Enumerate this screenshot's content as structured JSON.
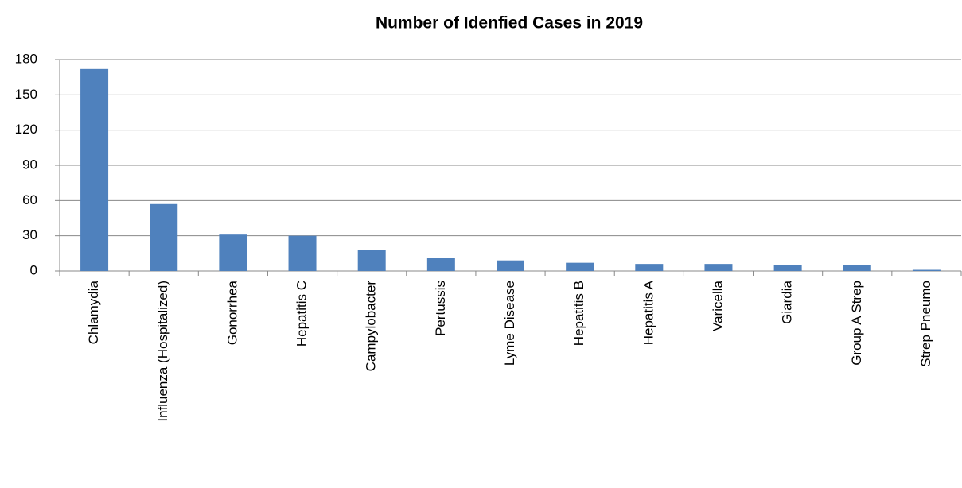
{
  "chart_data": {
    "type": "bar",
    "title": "Number of Idenfied Cases in 2019",
    "categories": [
      "Chlamydia",
      "Influenza (Hospitalized)",
      "Gonorrhea",
      "Hepatitis C",
      "Campylobacter",
      "Pertussis",
      "Lyme Disease",
      "Hepatitis B",
      "Hepatitis A",
      "Varicella",
      "Giardia",
      "Group A Strep",
      "Strep Pneumo"
    ],
    "values": [
      172,
      57,
      31,
      30,
      18,
      11,
      9,
      7,
      6,
      6,
      5,
      5,
      1
    ],
    "color": "#4f81bd",
    "ylim": [
      0,
      180
    ],
    "yticks": [
      0,
      30,
      60,
      90,
      120,
      150,
      180
    ],
    "grid": true
  }
}
